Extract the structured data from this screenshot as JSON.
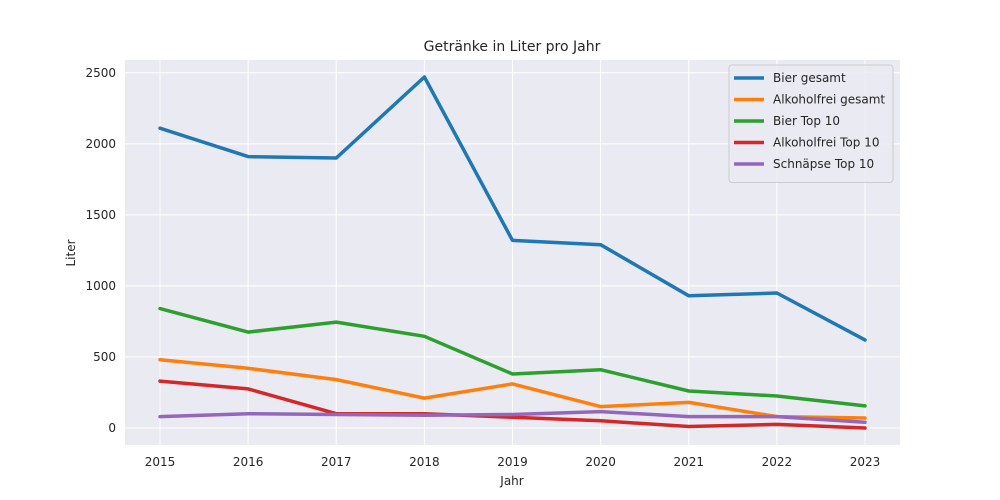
{
  "chart_data": {
    "type": "line",
    "title": "Getränke in Liter pro Jahr",
    "xlabel": "Jahr",
    "ylabel": "Liter",
    "x": [
      "2015",
      "2016",
      "2017",
      "2018",
      "2019",
      "2020",
      "2021",
      "2022",
      "2023"
    ],
    "yticks": [
      "0",
      "500",
      "1000",
      "1500",
      "2000",
      "2500"
    ],
    "ylim": [
      -120,
      2590
    ],
    "grid": true,
    "legend_position": "top-right",
    "series": [
      {
        "name": "Bier gesamt",
        "color": "#1f77b4",
        "values": [
          2110,
          1910,
          1900,
          2470,
          1320,
          1290,
          930,
          950,
          620
        ]
      },
      {
        "name": "Alkoholfrei gesamt",
        "color": "#ff7f0e",
        "values": [
          480,
          420,
          340,
          210,
          310,
          150,
          180,
          80,
          70
        ]
      },
      {
        "name": "Bier Top 10",
        "color": "#2ca02c",
        "values": [
          840,
          675,
          745,
          645,
          380,
          410,
          260,
          225,
          155
        ]
      },
      {
        "name": "Alkoholfrei Top 10",
        "color": "#d62728",
        "values": [
          330,
          275,
          100,
          100,
          75,
          50,
          10,
          25,
          0
        ]
      },
      {
        "name": "Schnäpse Top 10",
        "color": "#9467bd",
        "values": [
          80,
          100,
          95,
          90,
          95,
          115,
          80,
          80,
          40
        ]
      }
    ]
  }
}
